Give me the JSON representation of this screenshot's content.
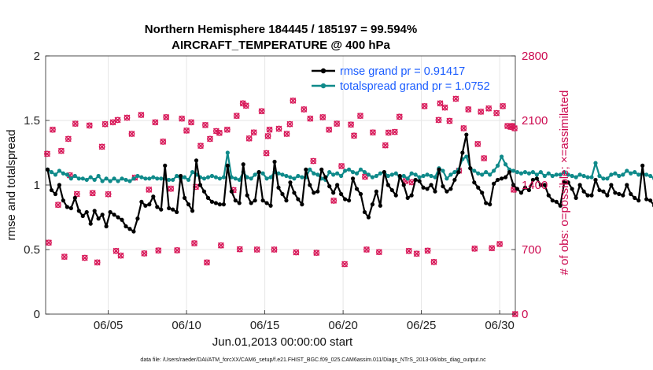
{
  "chart_data": {
    "type": "line",
    "title": "Northern Hemisphere 184445 / 185197 = 99.594%",
    "subtitle": "AIRCRAFT_TEMPERATURE @ 400 hPa",
    "xlabel": "Jun.01,2013 00:00:00 start",
    "ylabel": "rmse and totalspread",
    "y2label": "# of obs: o=possible; ×=assimilated",
    "footnote": "data file: /Users/raeder/DAI/ATM_forcXX/CAM6_setup/f.e21.FHIST_BGC.f09_025.CAM6assim.011/Diags_NTrS_2013-06/obs_diag_output.nc",
    "x_ticks": [
      {
        "v": 5,
        "label": "06/05"
      },
      {
        "v": 10,
        "label": "06/10"
      },
      {
        "v": 15,
        "label": "06/15"
      },
      {
        "v": 20,
        "label": "06/20"
      },
      {
        "v": 25,
        "label": "06/25"
      },
      {
        "v": 30,
        "label": "06/30"
      }
    ],
    "y_ticks": [
      "0",
      "0.5",
      "1",
      "1.5",
      "2"
    ],
    "y2_ticks": [
      "0",
      "700",
      "1400",
      "2100",
      "2800"
    ],
    "ylim": [
      0,
      2
    ],
    "y2lim": [
      0,
      2800
    ],
    "xlim": [
      1,
      31
    ],
    "colors": {
      "rmse": "#000000",
      "spread": "#0f8a8a",
      "obs": "#d81a5a",
      "legend_text": "#1a5cff",
      "right_axis": "#cc0a50"
    },
    "series": [
      {
        "name": "rmse grand pr = 0.91417",
        "key": "rmse",
        "t0": 1.125,
        "dt": 0.25,
        "values": [
          1.12,
          0.96,
          0.93,
          1.0,
          0.88,
          0.83,
          0.82,
          0.9,
          0.8,
          0.76,
          0.79,
          0.7,
          0.8,
          0.74,
          0.77,
          0.68,
          0.79,
          0.77,
          0.75,
          0.73,
          0.68,
          0.66,
          0.64,
          0.74,
          0.87,
          0.84,
          0.85,
          0.91,
          0.83,
          0.81,
          1.15,
          0.82,
          0.81,
          0.79,
          1.07,
          0.9,
          0.85,
          0.8,
          1.19,
          1.0,
          0.95,
          0.9,
          0.87,
          0.86,
          0.85,
          0.85,
          1.15,
          0.95,
          0.88,
          0.86,
          1.16,
          0.92,
          0.86,
          0.88,
          1.1,
          0.88,
          0.86,
          0.84,
          1.18,
          0.98,
          0.93,
          0.88,
          1.02,
          0.94,
          0.89,
          0.85,
          1.12,
          1.0,
          0.94,
          0.95,
          1.12,
          1.06,
          0.99,
          0.94,
          1.0,
          0.93,
          0.89,
          0.88,
          1.05,
          0.97,
          0.93,
          0.79,
          0.75,
          0.85,
          0.95,
          0.84,
          1.1,
          1.0,
          0.96,
          0.92,
          1.07,
          1.0,
          0.9,
          0.92,
          1.04,
          1.03,
          0.98,
          0.97,
          1.0,
          0.95,
          1.12,
          0.99,
          0.95,
          0.97,
          1.04,
          1.1,
          1.25,
          1.39,
          1.13,
          1.02,
          0.98,
          0.94,
          0.86,
          0.85,
          1.01,
          1.04,
          1.05,
          1.06,
          1.1,
          1.0,
          0.97,
          0.94,
          0.98,
          0.96,
          1.04,
          1.05,
          1.0,
          1.0,
          0.92,
          0.88,
          0.87,
          0.84,
          1.02,
          1.02,
          0.97,
          0.9,
          1.0,
          0.95,
          0.92,
          0.92,
          1.04,
          0.96,
          0.95,
          0.92,
          1.0,
          0.94,
          0.93,
          0.92,
          1.0,
          0.93,
          0.9,
          0.88,
          1.15,
          0.89,
          0.88,
          0.84
        ],
        "color": "#000000"
      },
      {
        "name": "totalspread grand pr = 1.0752",
        "key": "spread",
        "t0": 1.125,
        "dt": 0.25,
        "values": [
          1.12,
          1.1,
          1.08,
          1.11,
          1.09,
          1.08,
          1.05,
          1.07,
          1.05,
          1.05,
          1.04,
          1.06,
          1.04,
          1.07,
          1.03,
          1.05,
          1.03,
          1.05,
          1.03,
          1.05,
          1.04,
          1.03,
          1.05,
          1.07,
          1.06,
          1.05,
          1.05,
          1.06,
          1.05,
          1.05,
          1.05,
          1.04,
          1.04,
          1.07,
          1.05,
          1.06,
          1.04,
          1.1,
          1.08,
          1.06,
          1.05,
          1.06,
          1.07,
          1.06,
          1.05,
          1.06,
          1.25,
          1.06,
          1.05,
          1.04,
          1.1,
          1.06,
          1.05,
          1.08,
          1.1,
          1.09,
          1.05,
          1.06,
          1.1,
          1.09,
          1.08,
          1.07,
          1.06,
          1.05,
          1.07,
          1.06,
          1.06,
          1.12,
          1.09,
          1.08,
          1.05,
          1.04,
          1.1,
          1.08,
          1.09,
          1.07,
          1.11,
          1.12,
          1.1,
          1.09,
          1.12,
          1.1,
          1.08,
          1.06,
          1.07,
          1.09,
          1.1,
          1.07,
          1.08,
          1.09,
          1.06,
          1.07,
          1.05,
          1.09,
          1.08,
          1.06,
          1.07,
          1.08,
          1.07,
          1.06,
          1.13,
          1.11,
          1.05,
          1.08,
          1.1,
          1.12,
          1.2,
          1.22,
          1.13,
          1.11,
          1.09,
          1.08,
          1.1,
          1.08,
          1.11,
          1.15,
          1.22,
          1.16,
          1.12,
          1.11,
          1.1,
          1.09,
          1.1,
          1.09,
          1.1,
          1.08,
          1.1,
          1.07,
          1.09,
          1.07,
          1.08,
          1.08,
          1.1,
          1.08,
          1.07,
          1.06,
          1.08,
          1.07,
          1.06,
          1.06,
          1.17,
          1.07,
          1.05,
          1.05,
          1.08,
          1.09,
          1.07,
          1.08,
          1.11,
          1.09,
          1.1,
          1.08,
          1.09,
          1.08,
          1.07,
          1.05
        ],
        "color": "#0f8a8a"
      }
    ],
    "obs_count_points": [
      [
        1.1,
        1738
      ],
      [
        1.2,
        775
      ],
      [
        1.45,
        2000
      ],
      [
        1.8,
        1185
      ],
      [
        2.0,
        1770
      ],
      [
        2.2,
        622
      ],
      [
        2.45,
        1900
      ],
      [
        2.55,
        1505
      ],
      [
        2.9,
        2065
      ],
      [
        3.0,
        1302
      ],
      [
        3.5,
        610
      ],
      [
        3.8,
        2045
      ],
      [
        4.0,
        1312
      ],
      [
        4.3,
        560
      ],
      [
        4.6,
        1815
      ],
      [
        4.8,
        2060
      ],
      [
        5.0,
        1300
      ],
      [
        5.3,
        2080
      ],
      [
        5.5,
        685
      ],
      [
        5.6,
        2105
      ],
      [
        5.8,
        635
      ],
      [
        6.2,
        2130
      ],
      [
        6.5,
        1955
      ],
      [
        6.7,
        1480
      ],
      [
        7.1,
        2160
      ],
      [
        7.3,
        658
      ],
      [
        7.6,
        1350
      ],
      [
        8.0,
        2080
      ],
      [
        8.2,
        690
      ],
      [
        8.5,
        1870
      ],
      [
        8.7,
        2135
      ],
      [
        9.0,
        1360
      ],
      [
        9.4,
        692
      ],
      [
        9.7,
        2120
      ],
      [
        10.0,
        1990
      ],
      [
        10.3,
        2080
      ],
      [
        10.5,
        768
      ],
      [
        10.6,
        1380
      ],
      [
        10.9,
        1825
      ],
      [
        11.2,
        2050
      ],
      [
        11.3,
        560
      ],
      [
        11.5,
        1900
      ],
      [
        11.9,
        1985
      ],
      [
        12.1,
        1965
      ],
      [
        12.2,
        745
      ],
      [
        12.6,
        2000
      ],
      [
        13.0,
        1345
      ],
      [
        13.2,
        2150
      ],
      [
        13.4,
        703
      ],
      [
        13.6,
        2285
      ],
      [
        13.8,
        2260
      ],
      [
        14.0,
        1905
      ],
      [
        14.3,
        1970
      ],
      [
        14.5,
        700
      ],
      [
        14.8,
        2200
      ],
      [
        15.1,
        1745
      ],
      [
        15.2,
        1930
      ],
      [
        15.3,
        2000
      ],
      [
        15.6,
        700
      ],
      [
        15.9,
        2010
      ],
      [
        16.4,
        1955
      ],
      [
        16.6,
        2060
      ],
      [
        16.8,
        2315
      ],
      [
        17.0,
        670
      ],
      [
        17.5,
        2220
      ],
      [
        17.9,
        2120
      ],
      [
        18.1,
        1660
      ],
      [
        18.3,
        665
      ],
      [
        18.7,
        2135
      ],
      [
        19.1,
        2000
      ],
      [
        19.4,
        1230
      ],
      [
        19.6,
        2065
      ],
      [
        19.9,
        1605
      ],
      [
        20.1,
        542
      ],
      [
        20.5,
        2055
      ],
      [
        20.7,
        1935
      ],
      [
        21.1,
        2150
      ],
      [
        21.4,
        1490
      ],
      [
        21.5,
        700
      ],
      [
        21.9,
        1970
      ],
      [
        22.3,
        673
      ],
      [
        22.7,
        1830
      ],
      [
        22.9,
        1968
      ],
      [
        23.3,
        1975
      ],
      [
        23.6,
        2140
      ],
      [
        24.0,
        1443
      ],
      [
        24.2,
        685
      ],
      [
        24.4,
        1430
      ],
      [
        24.7,
        655
      ],
      [
        25.2,
        2255
      ],
      [
        25.4,
        688
      ],
      [
        25.8,
        565
      ],
      [
        26.1,
        2105
      ],
      [
        26.2,
        2285
      ],
      [
        26.5,
        2240
      ],
      [
        26.8,
        2095
      ],
      [
        27.2,
        2335
      ],
      [
        27.4,
        1555
      ],
      [
        27.7,
        2015
      ],
      [
        28.0,
        2220
      ],
      [
        28.4,
        710
      ],
      [
        28.6,
        1845
      ],
      [
        28.8,
        2195
      ],
      [
        29.0,
        1690
      ],
      [
        29.3,
        2230
      ],
      [
        29.5,
        715
      ],
      [
        29.8,
        2180
      ],
      [
        30.0,
        760
      ],
      [
        30.2,
        2255
      ],
      [
        30.5,
        2040
      ],
      [
        30.7,
        2030
      ],
      [
        30.8,
        2040
      ],
      [
        30.9,
        1350
      ],
      [
        30.95,
        2015
      ],
      [
        30.99,
        0
      ]
    ]
  }
}
